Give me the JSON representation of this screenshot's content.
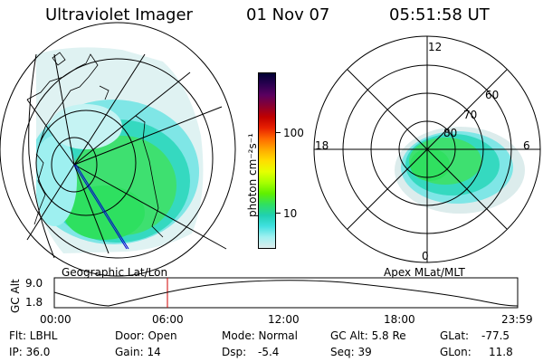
{
  "header": {
    "title": "Ultraviolet Imager",
    "date": "01 Nov 07",
    "time": "05:51:58 UT"
  },
  "panels": {
    "left_label": "Geographic Lat/Lon",
    "right_label": "Apex MLat/MLT"
  },
  "polar_plot": {
    "mlt_labels": {
      "top": "12",
      "left": "18",
      "right": "6",
      "bottom": "0"
    },
    "lat_labels": [
      "60",
      "70",
      "80"
    ]
  },
  "colorbar": {
    "unit_label": "photon cm⁻²s⁻¹",
    "tick_labels": [
      "100",
      "10"
    ],
    "colors": [
      "#000033",
      "#2a0050",
      "#5a0060",
      "#8a0030",
      "#c00000",
      "#e82000",
      "#ff6a00",
      "#ffaa00",
      "#ffdd00",
      "#e6ff00",
      "#a8ff00",
      "#60f000",
      "#30e060",
      "#20d0b0",
      "#40e0e0",
      "#a0f0f0",
      "#dcecec"
    ]
  },
  "altitude_plot": {
    "ylabel": "GC Alt",
    "yticks": [
      "9.0",
      "1.8"
    ],
    "xticks": [
      "00:00",
      "06:00",
      "12:00",
      "18:00",
      "23:59"
    ],
    "marker_color": "#d00000"
  },
  "meta": {
    "flt": "Flt: LBHL",
    "door": "Door: Open",
    "mode": "Mode: Normal",
    "gc_alt": "GC Alt: 5.8 Re",
    "glat_label": "GLat:",
    "glat_value": "-77.5",
    "ip": "IP: 36.0",
    "gain": "Gain: 14",
    "dsp_label": "Dsp:",
    "dsp_value": "-5.4",
    "seq": "Seq: 39",
    "glon_label": "GLon:",
    "glon_value": "11.8"
  }
}
